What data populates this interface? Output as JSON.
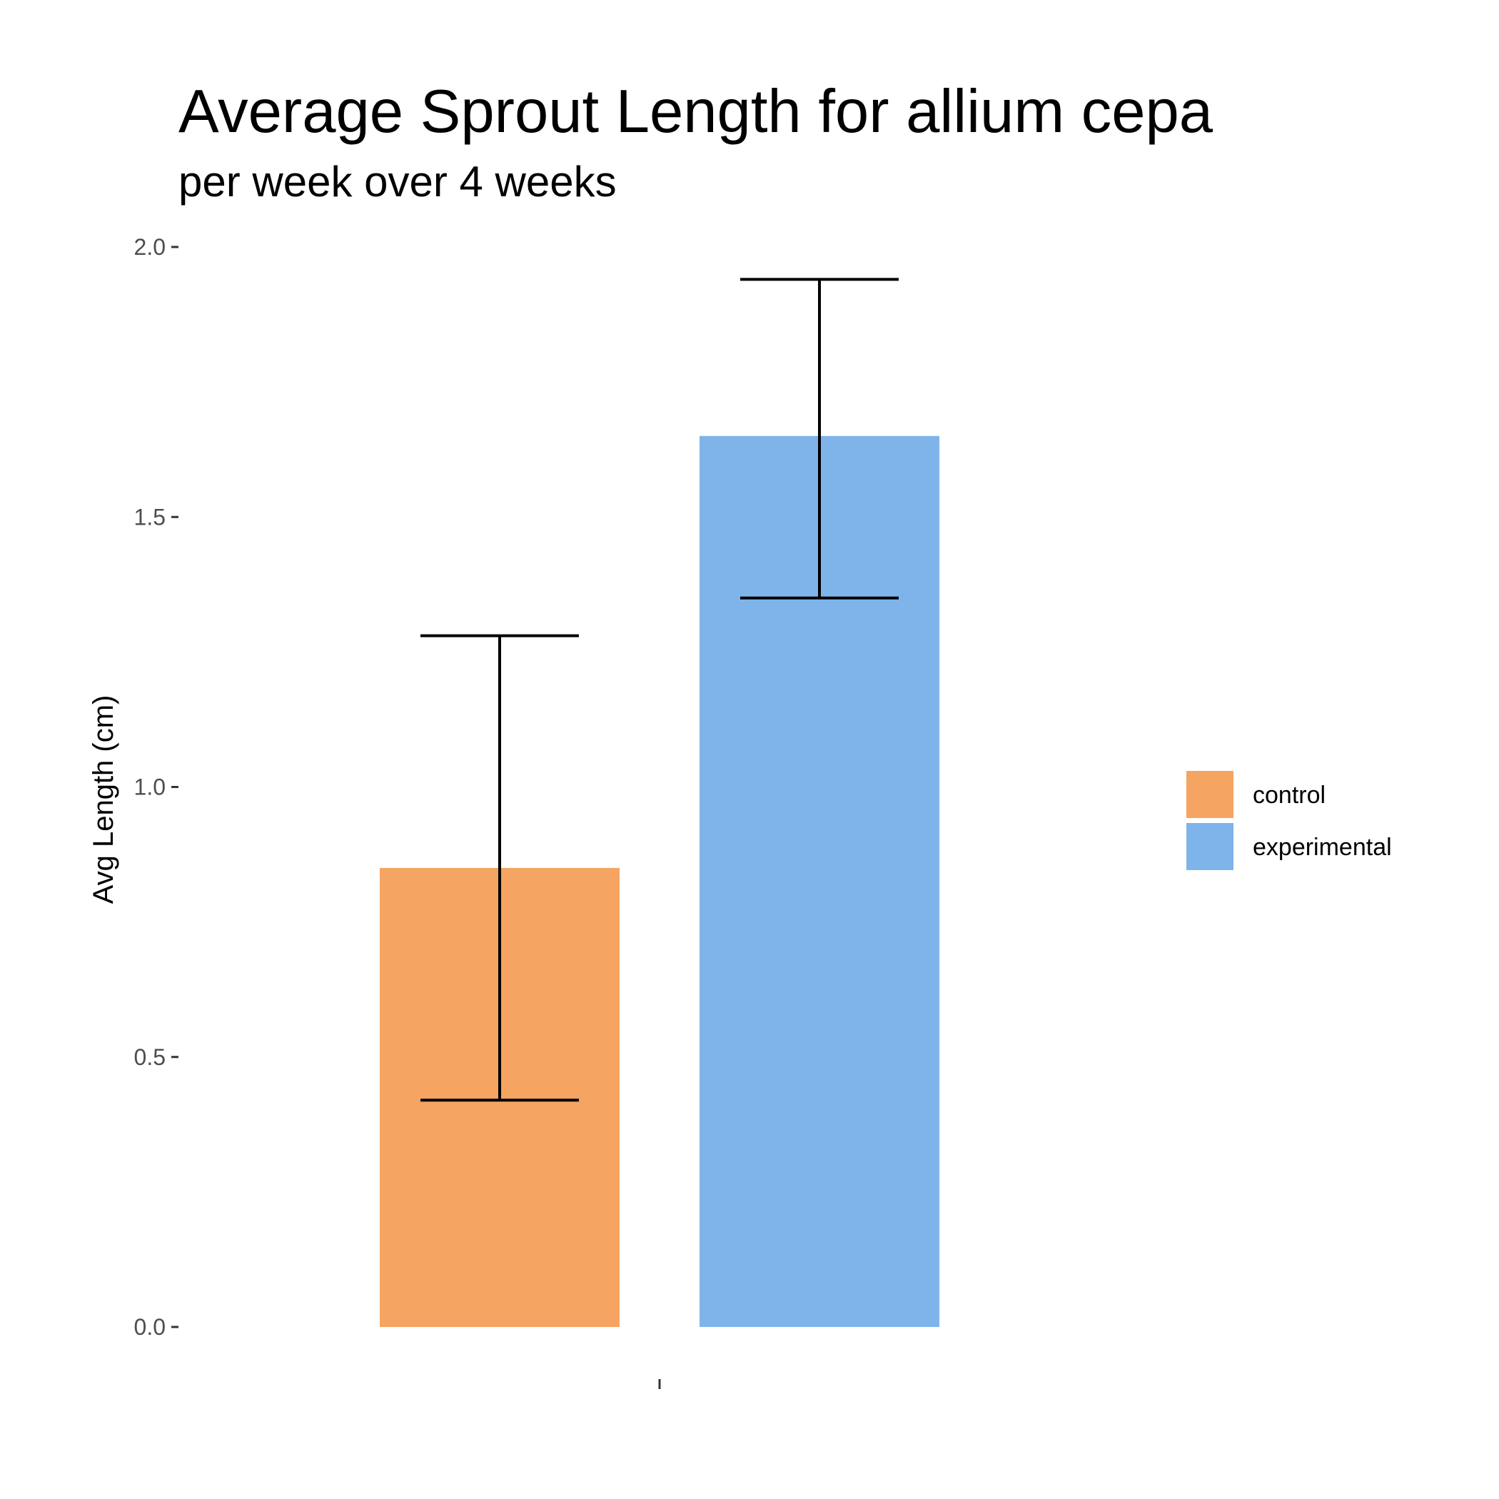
{
  "chart_data": {
    "type": "bar",
    "title": "Average Sprout Length for allium cepa",
    "subtitle": "per week over 4 weeks",
    "xlabel": "",
    "ylabel": "Avg Length (cm)",
    "ylim": [
      0,
      2.0
    ],
    "yticks": [
      0.0,
      0.5,
      1.0,
      1.5,
      2.0
    ],
    "ytick_labels": [
      "0.0",
      "0.5",
      "1.0",
      "1.5",
      "2.0"
    ],
    "x_ticks": [
      ""
    ],
    "grid": false,
    "legend_position": "right",
    "series": [
      {
        "name": "control",
        "value": 0.85,
        "error_low": 0.42,
        "error_high": 1.28,
        "color": "#F5A461"
      },
      {
        "name": "experimental",
        "value": 1.65,
        "error_low": 1.35,
        "error_high": 1.94,
        "color": "#7EB4EA"
      }
    ]
  }
}
